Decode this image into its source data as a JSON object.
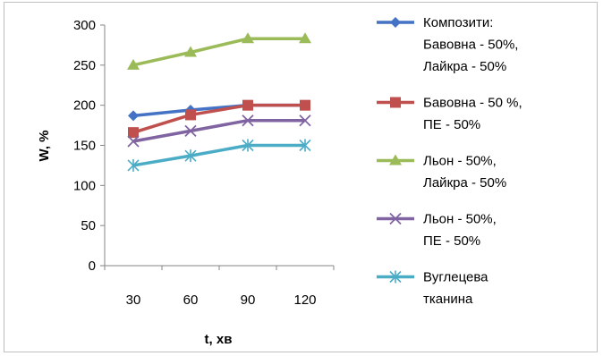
{
  "chart_data": {
    "type": "line",
    "xlabel": "t,  хв",
    "ylabel": "W, %",
    "categories": [
      "30",
      "60",
      "90",
      "120"
    ],
    "ylim": [
      0,
      300
    ],
    "yticks": [
      "0",
      "50",
      "100",
      "150",
      "200",
      "250",
      "300"
    ],
    "grid": false,
    "legend_position": "right",
    "series": [
      {
        "name_lines": [
          "Композити:",
          "Бавовна - 50%,",
          "Лайкра - 50%"
        ],
        "values": [
          187,
          194,
          200,
          200
        ],
        "color": "#4472c4",
        "marker": "diamond"
      },
      {
        "name_lines": [
          "Бавовна - 50 %,",
          "ПЕ - 50%"
        ],
        "values": [
          166,
          188,
          200,
          200
        ],
        "color": "#c0504d",
        "marker": "square"
      },
      {
        "name_lines": [
          "Льон - 50%,",
          "Лайкра - 50%"
        ],
        "values": [
          250,
          266,
          283,
          283
        ],
        "color": "#9bbb59",
        "marker": "triangle"
      },
      {
        "name_lines": [
          "Льон - 50%,",
          "ПЕ - 50%"
        ],
        "values": [
          155,
          168,
          181,
          181
        ],
        "color": "#8064a2",
        "marker": "x"
      },
      {
        "name_lines": [
          "Вуглецева",
          "тканина"
        ],
        "values": [
          125,
          137,
          150,
          150
        ],
        "color": "#4bacc6",
        "marker": "star"
      }
    ]
  }
}
